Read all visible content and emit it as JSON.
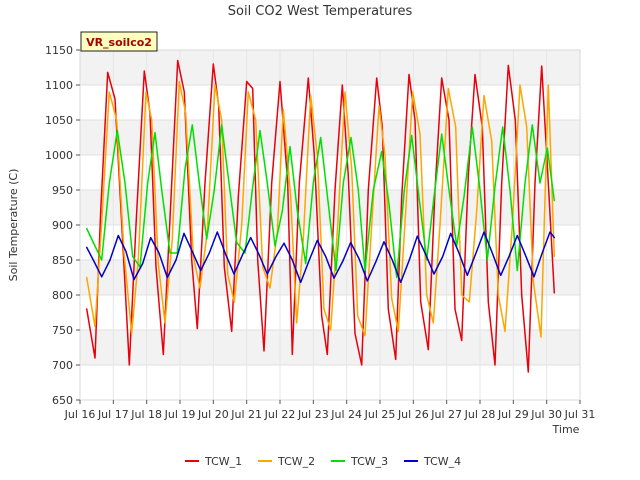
{
  "chart_data": {
    "type": "line",
    "title": "Soil CO2 West Temperatures",
    "badge": "VR_soilco2",
    "xlabel": "Time",
    "ylabel": "Soil Temperature (C)",
    "xlim": [
      16,
      31
    ],
    "ylim": [
      650,
      1150
    ],
    "x_ticks": [
      16,
      17,
      18,
      19,
      20,
      21,
      22,
      23,
      24,
      25,
      26,
      27,
      28,
      29,
      30,
      31
    ],
    "x_tick_labels": [
      "Jul 16",
      "Jul 17",
      "Jul 18",
      "Jul 19",
      "Jul 20",
      "Jul 21",
      "Jul 22",
      "Jul 23",
      "Jul 24",
      "Jul 25",
      "Jul 26",
      "Jul 27",
      "Jul 28",
      "Jul 29",
      "Jul 30",
      "Jul 31"
    ],
    "y_ticks": [
      650,
      700,
      750,
      800,
      850,
      900,
      950,
      1000,
      1050,
      1100,
      1150
    ],
    "y_tick_labels": [
      "650",
      "700",
      "750",
      "800",
      "850",
      "900",
      "950",
      "1000",
      "1050",
      "1100",
      "1150"
    ],
    "grid": true,
    "legend_position": "bottom",
    "series": [
      {
        "name": "TCW_1",
        "color": "#e8000b",
        "x": [
          16.2,
          16.45,
          16.62,
          16.83,
          17.05,
          17.3,
          17.48,
          17.68,
          17.93,
          18.1,
          18.28,
          18.5,
          18.72,
          18.93,
          19.13,
          19.35,
          19.52,
          19.75,
          20.0,
          20.16,
          20.33,
          20.55,
          20.75,
          21.0,
          21.18,
          21.33,
          21.52,
          21.75,
          22.0,
          22.23,
          22.37,
          22.58,
          22.85,
          23.03,
          23.25,
          23.42,
          23.65,
          23.87,
          24.05,
          24.25,
          24.45,
          24.65,
          24.9,
          25.07,
          25.25,
          25.47,
          25.65,
          25.87,
          26.05,
          26.22,
          26.45,
          26.65,
          26.85,
          27.07,
          27.25,
          27.45,
          27.65,
          27.85,
          28.07,
          28.25,
          28.45,
          28.65,
          28.85,
          29.06,
          29.25,
          29.45,
          29.65,
          29.85,
          30.05,
          30.23
        ],
        "y": [
          780,
          710,
          920,
          1118,
          1080,
          860,
          700,
          900,
          1120,
          1060,
          840,
          715,
          930,
          1135,
          1090,
          850,
          752,
          960,
          1130,
          1070,
          840,
          748,
          940,
          1105,
          1095,
          850,
          720,
          960,
          1105,
          960,
          715,
          960,
          1110,
          1000,
          770,
          715,
          950,
          1100,
          970,
          745,
          700,
          950,
          1110,
          1040,
          780,
          708,
          940,
          1115,
          1050,
          790,
          722,
          950,
          1110,
          1050,
          780,
          735,
          970,
          1115,
          1040,
          790,
          700,
          960,
          1128,
          1050,
          800,
          690,
          960,
          1127,
          960,
          803
        ]
      },
      {
        "name": "TCW_2",
        "color": "#ffa500",
        "x": [
          16.2,
          16.45,
          16.62,
          16.88,
          17.1,
          17.32,
          17.55,
          17.75,
          17.98,
          18.15,
          18.35,
          18.55,
          18.77,
          18.98,
          19.17,
          19.4,
          19.6,
          19.82,
          20.05,
          20.25,
          20.43,
          20.63,
          20.85,
          21.05,
          21.27,
          21.48,
          21.7,
          21.92,
          22.1,
          22.32,
          22.5,
          22.7,
          22.92,
          23.12,
          23.32,
          23.52,
          23.73,
          23.95,
          24.15,
          24.33,
          24.55,
          24.75,
          24.97,
          25.15,
          25.35,
          25.55,
          25.77,
          25.98,
          26.2,
          26.4,
          26.6,
          26.8,
          27.05,
          27.27,
          27.45,
          27.68,
          27.9,
          28.12,
          28.35,
          28.55,
          28.75,
          28.97,
          29.2,
          29.4,
          29.6,
          29.83,
          30.05,
          30.23
        ],
        "y": [
          825,
          755,
          880,
          1090,
          1050,
          860,
          745,
          850,
          1090,
          1050,
          845,
          760,
          880,
          1105,
          1060,
          855,
          810,
          890,
          1100,
          1050,
          830,
          790,
          900,
          1090,
          1050,
          840,
          810,
          890,
          1065,
          940,
          760,
          880,
          1085,
          1000,
          780,
          750,
          900,
          1090,
          980,
          770,
          742,
          900,
          1070,
          1000,
          795,
          748,
          920,
          1090,
          1030,
          800,
          760,
          900,
          1095,
          1040,
          800,
          790,
          920,
          1085,
          1020,
          800,
          748,
          900,
          1100,
          1040,
          820,
          740,
          1100,
          855
        ]
      },
      {
        "name": "TCW_3",
        "color": "#00e000",
        "x": [
          16.2,
          16.4,
          16.65,
          16.88,
          17.12,
          17.35,
          17.58,
          17.8,
          18.03,
          18.25,
          18.45,
          18.7,
          18.92,
          19.15,
          19.37,
          19.58,
          19.8,
          20.03,
          20.25,
          20.47,
          20.7,
          20.95,
          21.17,
          21.4,
          21.62,
          21.85,
          22.07,
          22.3,
          22.52,
          22.77,
          23.0,
          23.22,
          23.45,
          23.68,
          23.9,
          24.13,
          24.35,
          24.55,
          24.8,
          25.05,
          25.27,
          25.5,
          25.73,
          25.95,
          26.17,
          26.4,
          26.62,
          26.85,
          27.07,
          27.3,
          27.52,
          27.77,
          28.0,
          28.22,
          28.45,
          28.68,
          28.9,
          29.12,
          29.35,
          29.57,
          29.8,
          30.02,
          30.23
        ],
        "y": [
          895,
          875,
          850,
          960,
          1035,
          960,
          855,
          840,
          960,
          1032,
          950,
          860,
          860,
          980,
          1043,
          960,
          880,
          950,
          1043,
          960,
          875,
          860,
          950,
          1035,
          960,
          870,
          920,
          1012,
          920,
          845,
          960,
          1025,
          930,
          835,
          960,
          1025,
          950,
          835,
          950,
          1005,
          930,
          825,
          950,
          1028,
          940,
          850,
          940,
          1030,
          950,
          870,
          940,
          1040,
          950,
          850,
          955,
          1040,
          950,
          835,
          960,
          1043,
          960,
          1010,
          935
        ]
      },
      {
        "name": "TCW_4",
        "color": "#0000cc",
        "x": [
          16.2,
          16.4,
          16.65,
          16.9,
          17.15,
          17.38,
          17.62,
          17.88,
          18.12,
          18.37,
          18.62,
          18.88,
          19.12,
          19.37,
          19.62,
          19.88,
          20.12,
          20.37,
          20.62,
          20.88,
          21.12,
          21.37,
          21.62,
          21.88,
          22.12,
          22.37,
          22.62,
          22.88,
          23.12,
          23.37,
          23.62,
          23.88,
          24.12,
          24.37,
          24.62,
          24.88,
          25.12,
          25.37,
          25.62,
          25.88,
          26.12,
          26.37,
          26.62,
          26.88,
          27.12,
          27.37,
          27.62,
          27.88,
          28.12,
          28.37,
          28.62,
          28.88,
          29.12,
          29.37,
          29.62,
          29.88,
          30.1,
          30.23
        ],
        "y": [
          868,
          850,
          826,
          850,
          885,
          862,
          822,
          845,
          882,
          860,
          825,
          850,
          888,
          862,
          835,
          860,
          890,
          858,
          830,
          858,
          882,
          858,
          830,
          855,
          874,
          850,
          818,
          850,
          878,
          855,
          824,
          848,
          875,
          852,
          820,
          848,
          876,
          850,
          818,
          850,
          884,
          858,
          830,
          855,
          888,
          860,
          828,
          860,
          890,
          860,
          828,
          856,
          885,
          856,
          826,
          862,
          890,
          882
        ]
      }
    ]
  },
  "legend": {
    "items": [
      {
        "label": "TCW_1"
      },
      {
        "label": "TCW_2"
      },
      {
        "label": "TCW_3"
      },
      {
        "label": "TCW_4"
      }
    ]
  }
}
